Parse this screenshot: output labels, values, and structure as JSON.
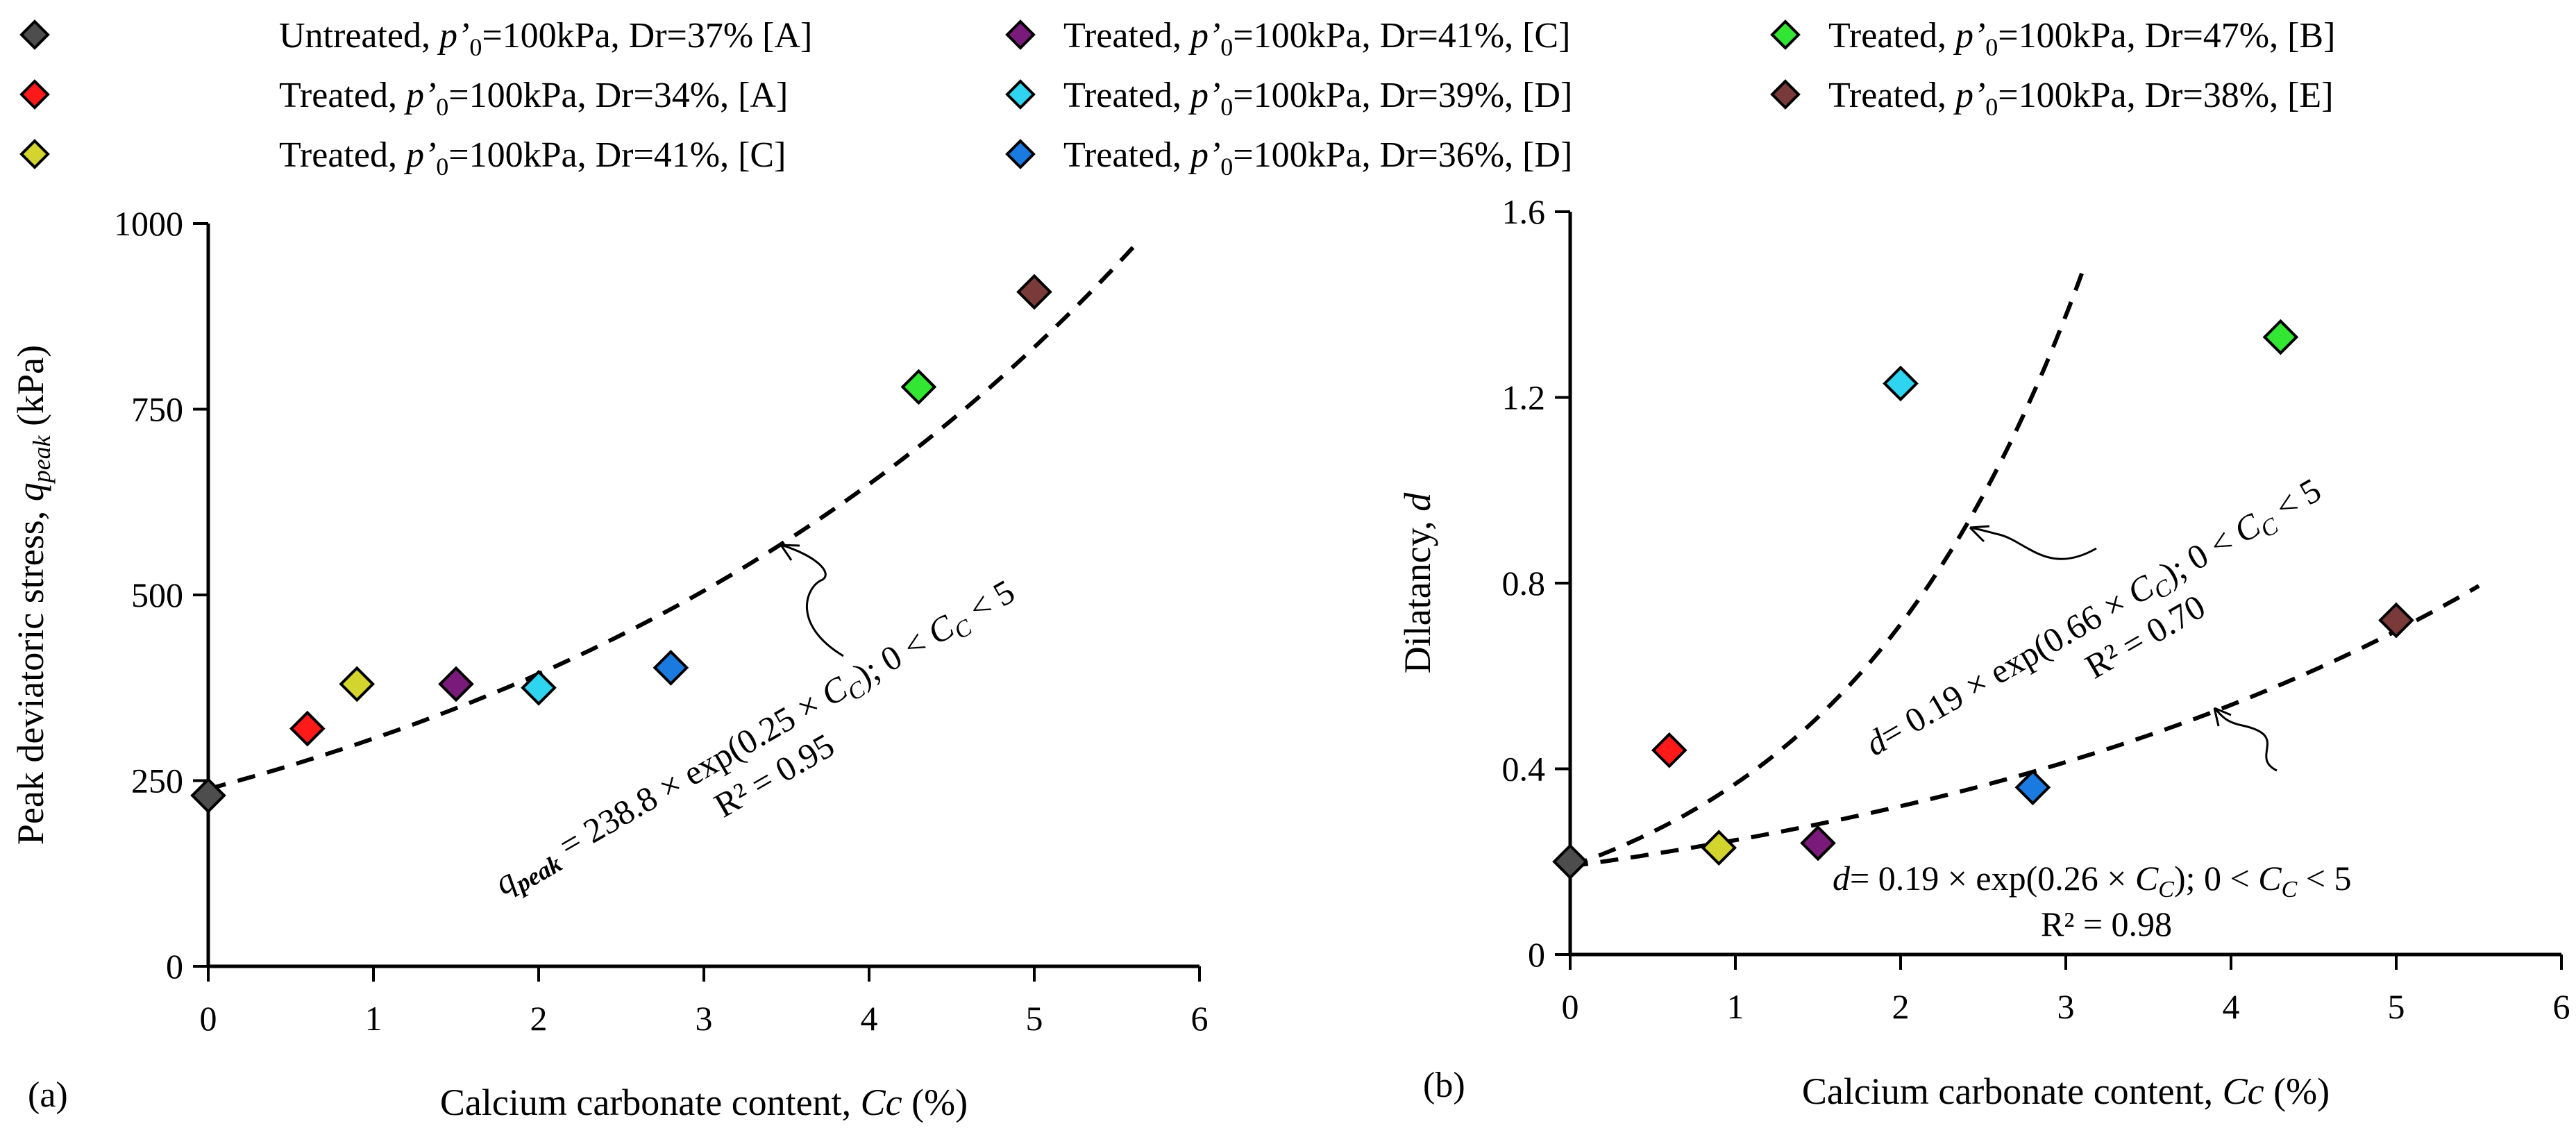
{
  "legend": [
    {
      "key": "untreated_a",
      "prefix": "Untreated, ",
      "p": "p’",
      "sub": "0",
      "suffix": "=100kPa, Dr=37% [A]",
      "color": "#4d4d4d"
    },
    {
      "key": "treated_a",
      "prefix": "Treated, ",
      "p": "p’",
      "sub": "0",
      "suffix": "=100kPa, Dr=34%, [A]",
      "color": "#ff1a1a"
    },
    {
      "key": "treated_c41y",
      "prefix": "Treated, ",
      "p": "p’",
      "sub": "0",
      "suffix": "=100kPa, Dr=41%, [C]",
      "color": "#d4d42e"
    },
    {
      "key": "treated_c41p",
      "prefix": "Treated, ",
      "p": "p’",
      "sub": "0",
      "suffix": "=100kPa, Dr=41%, [C]",
      "color": "#7a1a7a"
    },
    {
      "key": "treated_d39",
      "prefix": "Treated, ",
      "p": "p’",
      "sub": "0",
      "suffix": "=100kPa, Dr=39%, [D]",
      "color": "#2ed4f0"
    },
    {
      "key": "treated_d36",
      "prefix": "Treated, ",
      "p": "p’",
      "sub": "0",
      "suffix": "=100kPa, Dr=36%, [D]",
      "color": "#1a7ae0"
    },
    {
      "key": "treated_b",
      "prefix": "Treated, ",
      "p": "p’",
      "sub": "0",
      "suffix": "=100kPa, Dr=47%, [B]",
      "color": "#33e633"
    },
    {
      "key": "treated_e",
      "prefix": "Treated, ",
      "p": "p’",
      "sub": "0",
      "suffix": "=100kPa, Dr=38%, [E]",
      "color": "#7a3a3a"
    }
  ],
  "chart_data": [
    {
      "type": "scatter",
      "panel_label": "(a)",
      "xlabel": "Calcium carbonate content, ",
      "xlabel_var": "Cc",
      "xlabel_unit": " (%)",
      "ylabel": "Peak deviatoric stress, ",
      "ylabel_var": "q",
      "ylabel_sub": "peak",
      "ylabel_unit": " (kPa)",
      "xlim": [
        0,
        6
      ],
      "ylim": [
        0,
        1000
      ],
      "xticks": [
        0,
        1,
        2,
        3,
        4,
        5,
        6
      ],
      "yticks": [
        0,
        250,
        500,
        750,
        1000
      ],
      "points": [
        {
          "series": "untreated_a",
          "x": 0,
          "y": 230
        },
        {
          "series": "treated_a",
          "x": 0.6,
          "y": 320
        },
        {
          "series": "treated_c41y",
          "x": 0.9,
          "y": 380
        },
        {
          "series": "treated_c41p",
          "x": 1.5,
          "y": 380
        },
        {
          "series": "treated_d39",
          "x": 2.0,
          "y": 375
        },
        {
          "series": "treated_d36",
          "x": 2.8,
          "y": 402
        },
        {
          "series": "treated_b",
          "x": 4.3,
          "y": 780
        },
        {
          "series": "treated_e",
          "x": 5.0,
          "y": 908
        }
      ],
      "fits": [
        {
          "a": 238.8,
          "b": 0.25,
          "x_range": [
            0,
            5.6
          ],
          "eq_lhs": "q",
          "eq_lhs_sub": "peak",
          "eq_rhs": " = 238.8 × exp(0.25 × ",
          "eq_var": "C",
          "eq_var_sub": "C",
          "eq_tail": ");  0 < ",
          "eq_range_var": "C",
          "eq_range_sub": "C",
          "eq_range_end": " < 5",
          "r2": "R² = 0.95"
        }
      ]
    },
    {
      "type": "scatter",
      "panel_label": "(b)",
      "xlabel": "Calcium carbonate content, ",
      "xlabel_var": "Cc",
      "xlabel_unit": " (%)",
      "ylabel": "Dilatancy, ",
      "ylabel_var": "d",
      "xlim": [
        0,
        6
      ],
      "ylim": [
        0,
        1.6
      ],
      "xticks": [
        0,
        1,
        2,
        3,
        4,
        5,
        6
      ],
      "yticks": [
        "0",
        "0.4",
        "0.8",
        "1.2",
        "1.6"
      ],
      "ytick_values": [
        0,
        0.4,
        0.8,
        1.2,
        1.6
      ],
      "points": [
        {
          "series": "untreated_a",
          "x": 0,
          "y": 0.2
        },
        {
          "series": "treated_a",
          "x": 0.6,
          "y": 0.44
        },
        {
          "series": "treated_c41y",
          "x": 0.9,
          "y": 0.23
        },
        {
          "series": "treated_c41p",
          "x": 1.5,
          "y": 0.24
        },
        {
          "series": "treated_d39",
          "x": 2.0,
          "y": 1.23
        },
        {
          "series": "treated_d36",
          "x": 2.8,
          "y": 0.36
        },
        {
          "series": "treated_b",
          "x": 4.3,
          "y": 1.33
        },
        {
          "series": "treated_e",
          "x": 5.0,
          "y": 0.72
        }
      ],
      "fits": [
        {
          "a": 0.19,
          "b": 0.66,
          "x_range": [
            0,
            3.1
          ],
          "eq_lhs": "d",
          "eq_rhs": "= 0.19 × exp(0.66 × ",
          "eq_var": "C",
          "eq_var_sub": "C",
          "eq_tail": ");  0 < ",
          "eq_range_var": "C",
          "eq_range_sub": "C",
          "eq_range_end": " < 5",
          "r2": "R² = 0.70"
        },
        {
          "a": 0.19,
          "b": 0.26,
          "x_range": [
            0,
            5.5
          ],
          "eq_lhs": "d",
          "eq_rhs": "= 0.19 × exp(0.26 × ",
          "eq_var": "C",
          "eq_var_sub": "C",
          "eq_tail": ");   0 < ",
          "eq_range_var": "C",
          "eq_range_sub": "C",
          "eq_range_end": " < 5",
          "r2": "R² = 0.98"
        }
      ]
    }
  ]
}
